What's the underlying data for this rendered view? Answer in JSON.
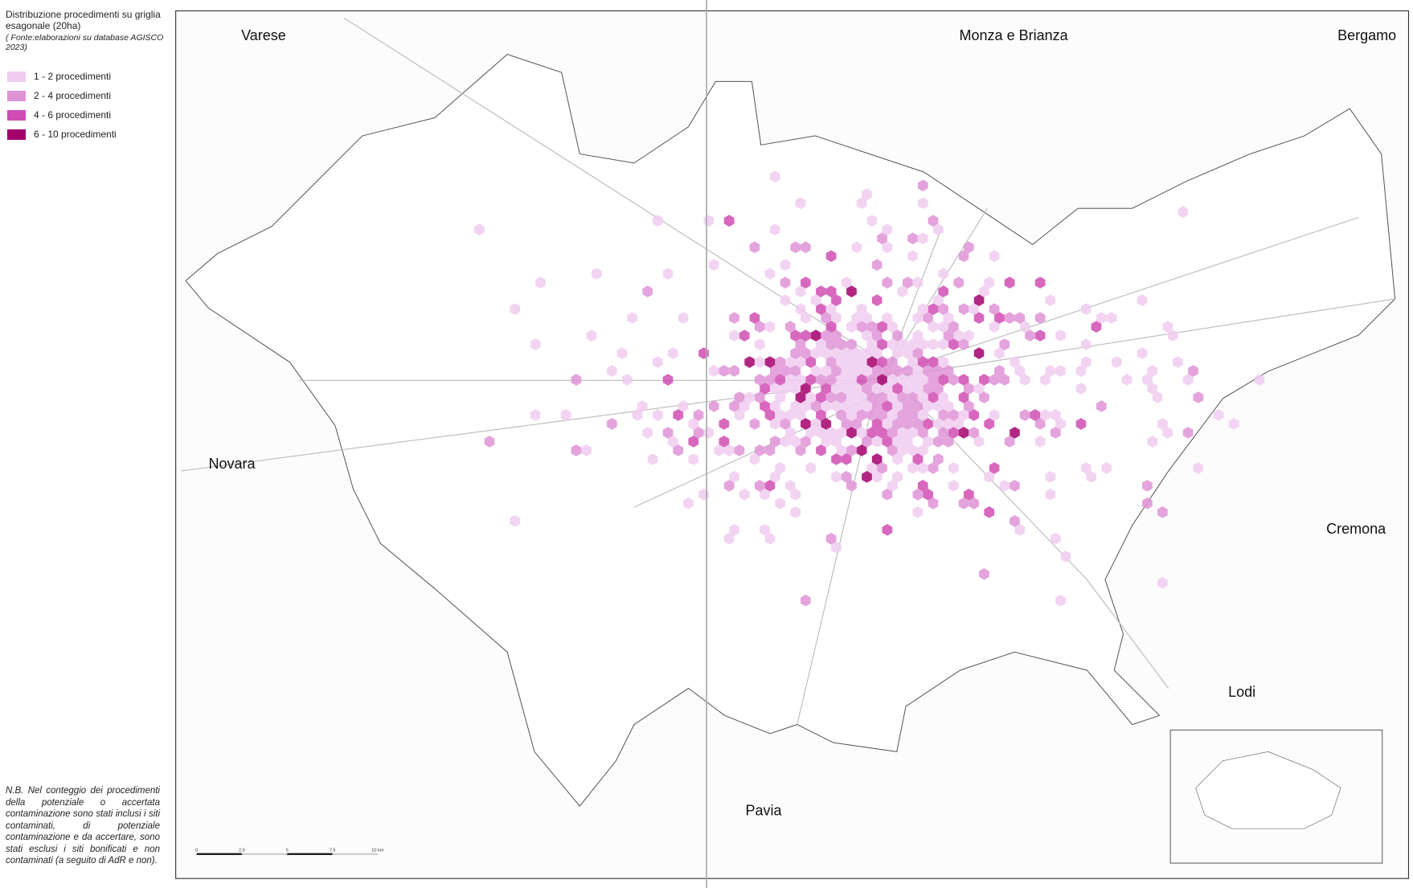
{
  "legend": {
    "title": "Distribuzione procedimenti su griglia esagonale (20ha)",
    "source": "( Fonte:elaborazioni su database AGISCO 2023)",
    "items": [
      {
        "label": "1 - 2 procedimenti",
        "color": "#f0cdf0"
      },
      {
        "label": "2 - 4 procedimenti",
        "color": "#df93d6"
      },
      {
        "label": "4 - 6 procedimenti",
        "color": "#d04db3"
      },
      {
        "label": "6 - 10 procedimenti",
        "color": "#a3006c"
      }
    ]
  },
  "places": [
    "Varese",
    "Monza e Brianza",
    "Bergamo",
    "Novara",
    "Cremona",
    "Lodi",
    "Pavia"
  ],
  "scale_bar": {
    "labels": [
      "0",
      "2,5",
      "5",
      "7,5",
      "10 km"
    ]
  },
  "note": "N.B. Nel conteggio dei procedimenti della potenziale o accertata contaminazione sono stati inclusi i siti contaminati, di potenziale contaminazione e da accertare, sono stati esclusi i siti bonificati e non contaminati (a seguito di AdR e non)."
}
